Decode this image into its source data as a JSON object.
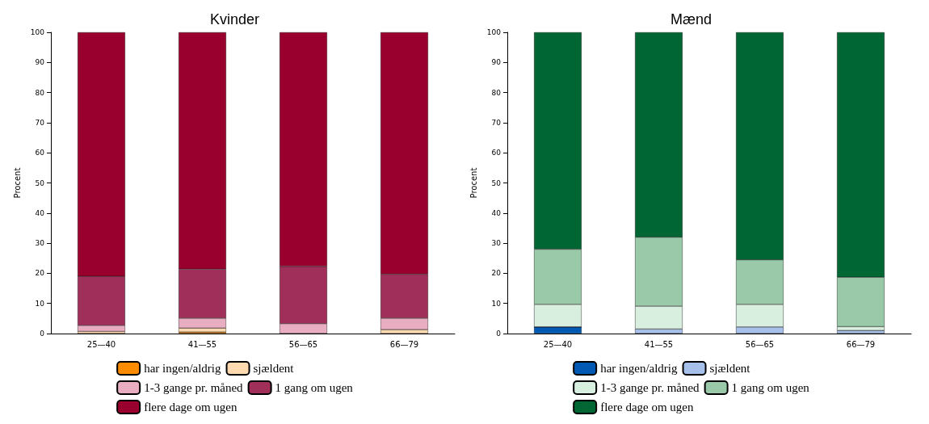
{
  "chart_data": [
    {
      "type": "bar",
      "title": "Kvinder",
      "ylabel": "Procent",
      "categories": [
        "25—40",
        "41—55",
        "56—65",
        "66—79"
      ],
      "stacked": true,
      "ylim": [
        0,
        100
      ],
      "yticks": [
        0,
        10,
        20,
        30,
        40,
        50,
        60,
        70,
        80,
        90,
        100
      ],
      "grid": false,
      "legend": "bottom",
      "series": [
        {
          "name": "har ingen/aldrig",
          "color": "#ff8c00",
          "values": [
            0,
            0.5,
            0,
            0
          ]
        },
        {
          "name": "sjældent",
          "color": "#ffd9b0",
          "values": [
            0.7,
            1.3,
            0,
            1.3
          ]
        },
        {
          "name": "1-3 gange pr. måned",
          "color": "#e8adc0",
          "values": [
            2.0,
            3.3,
            3.3,
            3.8
          ]
        },
        {
          "name": "1 gang om ugen",
          "color": "#a0305a",
          "values": [
            16.3,
            16.3,
            19.0,
            14.6
          ]
        },
        {
          "name": "flere dage om ugen",
          "color": "#99002e",
          "values": [
            81.0,
            78.6,
            77.7,
            80.3
          ]
        }
      ]
    },
    {
      "type": "bar",
      "title": "Mænd",
      "ylabel": "Procent",
      "categories": [
        "25—40",
        "41—55",
        "56—65",
        "66—79"
      ],
      "stacked": true,
      "ylim": [
        0,
        100
      ],
      "yticks": [
        0,
        10,
        20,
        30,
        40,
        50,
        60,
        70,
        80,
        90,
        100
      ],
      "grid": false,
      "legend": "bottom",
      "series": [
        {
          "name": "har ingen/aldrig",
          "color": "#0059b3",
          "values": [
            2.2,
            0,
            0,
            0
          ]
        },
        {
          "name": "sjældent",
          "color": "#a6c0ea",
          "values": [
            0,
            1.5,
            2.2,
            1.0
          ]
        },
        {
          "name": "1-3 gange pr. måned",
          "color": "#d8eedf",
          "values": [
            7.5,
            7.6,
            7.5,
            1.3
          ]
        },
        {
          "name": "1 gang om ugen",
          "color": "#99c9a8",
          "values": [
            18.3,
            22.9,
            14.8,
            16.4
          ]
        },
        {
          "name": "flere dage om ugen",
          "color": "#006633",
          "values": [
            72.0,
            68.0,
            75.5,
            81.3
          ]
        }
      ]
    }
  ]
}
